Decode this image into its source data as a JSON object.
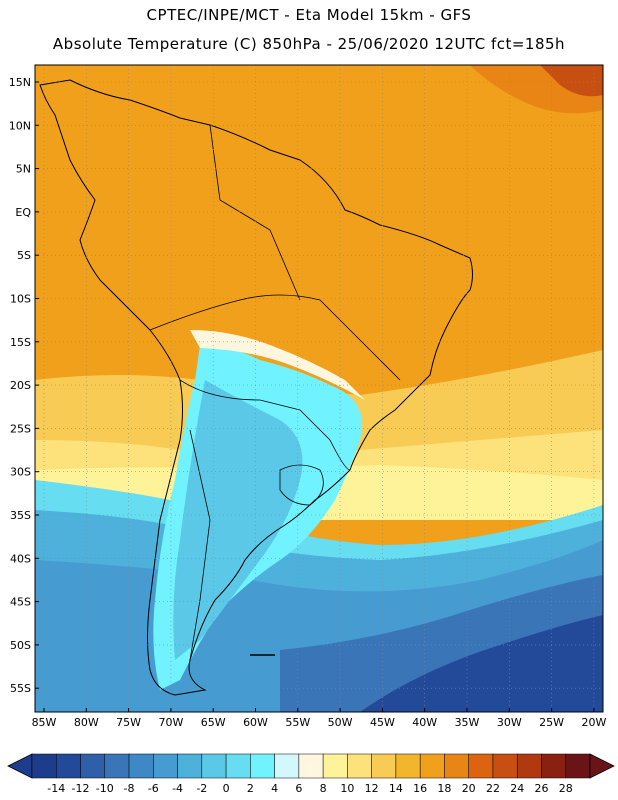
{
  "header": {
    "line1": "CPTEC/INPE/MCT -  Eta Model 15km - GFS",
    "line2": "Absolute Temperature (C) 850hPa - 25/06/2020 12UTC fct=185h"
  },
  "axes": {
    "lat_labels": [
      "15N",
      "10N",
      "5N",
      "EQ",
      "5S",
      "10S",
      "15S",
      "20S",
      "25S",
      "30S",
      "35S",
      "40S",
      "45S",
      "50S",
      "55S"
    ],
    "lon_labels": [
      "85W",
      "80W",
      "75W",
      "70W",
      "65W",
      "60W",
      "55W",
      "50W",
      "45W",
      "40W",
      "35W",
      "30W",
      "25W",
      "20W"
    ]
  },
  "legend": {
    "labels": [
      "-14",
      "-12",
      "-10",
      "-8",
      "-6",
      "-4",
      "-2",
      "0",
      "2",
      "4",
      "6",
      "8",
      "10",
      "12",
      "14",
      "16",
      "18",
      "20",
      "22",
      "24",
      "26",
      "28"
    ],
    "colors": [
      "#1e3c8c",
      "#234a98",
      "#2e5fa8",
      "#3a75b8",
      "#3f88c6",
      "#469bd0",
      "#4eb1dc",
      "#5ac8e6",
      "#66ddf0",
      "#70f3ff",
      "#d2f8fb",
      "#fff6e0",
      "#fff39a",
      "#fde17a",
      "#f8cb55",
      "#f2b62c",
      "#f0a01a",
      "#e88514",
      "#dc6410",
      "#c84f12",
      "#b03a10",
      "#8a2010",
      "#6a1418"
    ]
  }
}
